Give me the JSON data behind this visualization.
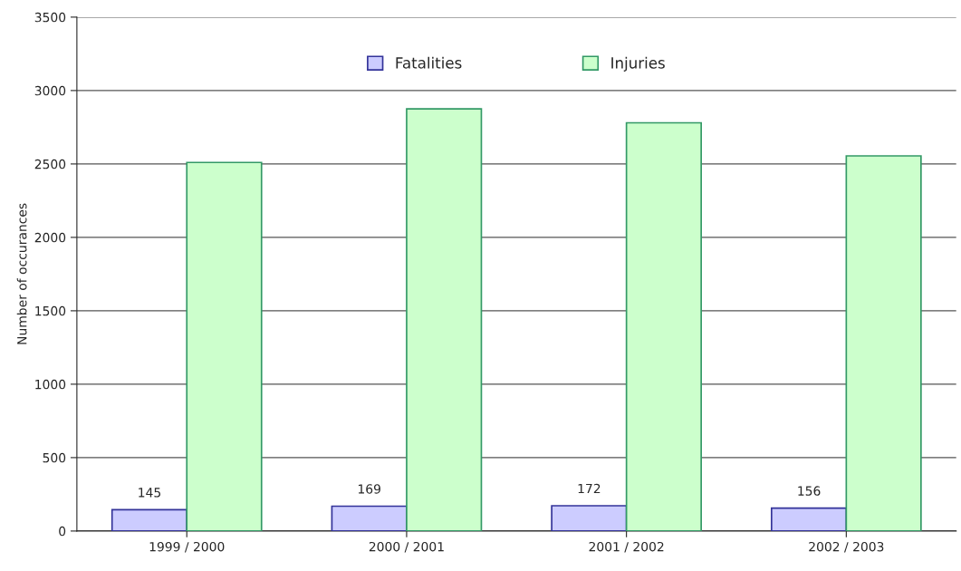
{
  "chart_data": {
    "type": "bar",
    "ylabel": "Number of occurances",
    "categories": [
      "1999 / 2000",
      "2000 / 2001",
      "2001 / 2002",
      "2002 / 2003"
    ],
    "series": [
      {
        "name": "Fatalities",
        "color": "#ccccff",
        "values": [
          145,
          169,
          172,
          156
        ],
        "value_labels": [
          "145",
          "169",
          "172",
          "156"
        ]
      },
      {
        "name": "Injuries",
        "color": "#ccffcc",
        "values": [
          2510,
          2875,
          2780,
          2555
        ]
      }
    ],
    "ylim": [
      0,
      3500
    ],
    "yticks": [
      0,
      500,
      1000,
      1500,
      2000,
      2500,
      3000,
      3500
    ],
    "grid": "y",
    "legend": "top"
  }
}
